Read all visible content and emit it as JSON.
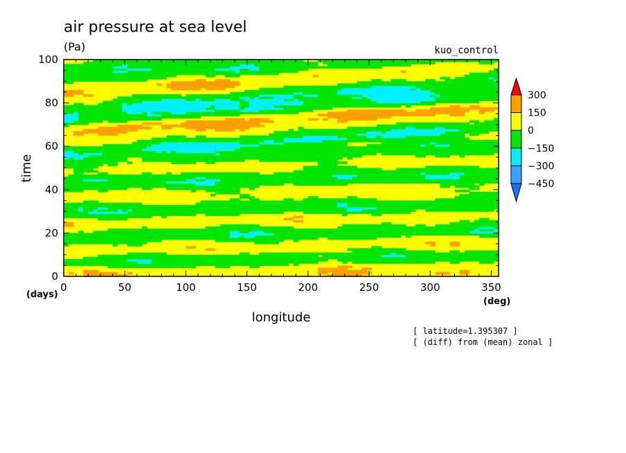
{
  "chart_data": {
    "type": "heatmap",
    "title": "air pressure at sea level",
    "units": "(Pa)",
    "experiment": "kuo_control",
    "xlabel": "longitude",
    "ylabel": "time",
    "x_unit": "(deg)",
    "y_unit": "(days)",
    "xlim": [
      0,
      356
    ],
    "ylim": [
      0,
      100
    ],
    "x_ticks": [
      0,
      50,
      100,
      150,
      200,
      250,
      300,
      350
    ],
    "y_ticks": [
      0,
      20,
      40,
      60,
      80,
      100
    ],
    "annotations": [
      "[ latitude=1.395307 ]",
      "[ (diff) from (mean) zonal ]"
    ],
    "levels": [
      -450,
      -300,
      -150,
      0,
      150,
      300
    ],
    "level_labels": [
      "300",
      "150",
      "0",
      "−150",
      "−300",
      "−450"
    ],
    "colorbar_colors": [
      "#1e6eff",
      "#3ca0ff",
      "#00f0ff",
      "#00e600",
      "#ffff00",
      "#ffa000",
      "#ff0000"
    ],
    "bands": [
      {
        "time_at_lon0": 1,
        "slope": 0.008,
        "value": 120
      },
      {
        "time_at_lon0": 6,
        "slope": 0.01,
        "value": -90
      },
      {
        "time_at_lon0": 12,
        "slope": 0.01,
        "value": 80
      },
      {
        "time_at_lon0": 18,
        "slope": 0.012,
        "value": -110
      },
      {
        "time_at_lon0": 24,
        "slope": 0.008,
        "value": 90
      },
      {
        "time_at_lon0": 30,
        "slope": 0.012,
        "value": -100
      },
      {
        "time_at_lon0": 36,
        "slope": 0.01,
        "value": 70
      },
      {
        "time_at_lon0": 43,
        "slope": 0.015,
        "value": -120
      },
      {
        "time_at_lon0": 49,
        "slope": 0.012,
        "value": 80
      },
      {
        "time_at_lon0": 53,
        "slope": 0.018,
        "value": -90
      },
      {
        "time_at_lon0": 57,
        "slope": 0.04,
        "value": -220
      },
      {
        "time_at_lon0": 61,
        "slope": 0.035,
        "value": 110
      },
      {
        "time_at_lon0": 67,
        "slope": 0.03,
        "value": 190
      },
      {
        "time_at_lon0": 72,
        "slope": 0.035,
        "value": -150
      },
      {
        "time_at_lon0": 77,
        "slope": 0.045,
        "value": -200
      },
      {
        "time_at_lon0": 81,
        "slope": 0.04,
        "value": 120
      },
      {
        "time_at_lon0": 86,
        "slope": 0.03,
        "value": 170
      },
      {
        "time_at_lon0": 91,
        "slope": 0.03,
        "value": -120
      },
      {
        "time_at_lon0": 96,
        "slope": 0.02,
        "value": -180
      },
      {
        "time_at_lon0": 100,
        "slope": 0.0,
        "value": 60
      }
    ]
  }
}
